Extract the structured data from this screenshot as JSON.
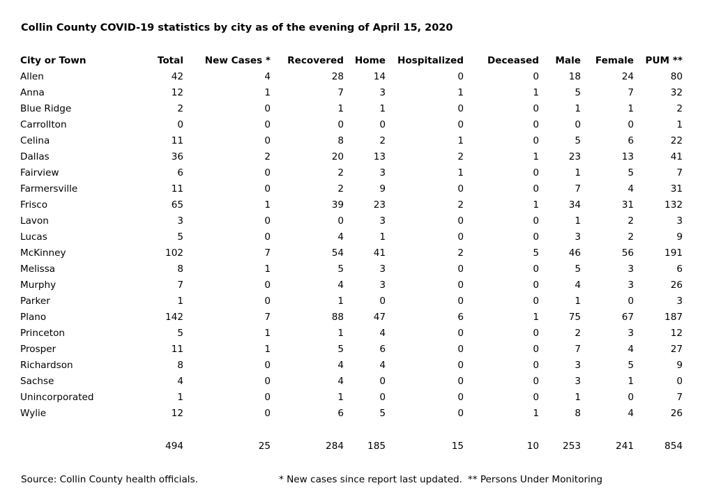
{
  "title": "Collin County COVID-19 statistics by city as of the evening of April 15, 2020",
  "columns": [
    "City or Town",
    "Total",
    "New Cases *",
    "Recovered",
    "Home",
    "Hospitalized",
    "Deceased",
    "Male",
    "Female",
    "PUM **"
  ],
  "rows": [
    [
      "Allen",
      "42",
      "4",
      "28",
      "14",
      "0",
      "0",
      "18",
      "24",
      "80"
    ],
    [
      "Anna",
      "12",
      "1",
      "7",
      "3",
      "1",
      "1",
      "5",
      "7",
      "32"
    ],
    [
      "Blue Ridge",
      "2",
      "0",
      "1",
      "1",
      "0",
      "0",
      "1",
      "1",
      "2"
    ],
    [
      "Carrollton",
      "0",
      "0",
      "0",
      "0",
      "0",
      "0",
      "0",
      "0",
      "1"
    ],
    [
      "Celina",
      "11",
      "0",
      "8",
      "2",
      "1",
      "0",
      "5",
      "6",
      "22"
    ],
    [
      "Dallas",
      "36",
      "2",
      "20",
      "13",
      "2",
      "1",
      "23",
      "13",
      "41"
    ],
    [
      "Fairview",
      "6",
      "0",
      "2",
      "3",
      "1",
      "0",
      "1",
      "5",
      "7"
    ],
    [
      "Farmersville",
      "11",
      "0",
      "2",
      "9",
      "0",
      "0",
      "7",
      "4",
      "31"
    ],
    [
      "Frisco",
      "65",
      "1",
      "39",
      "23",
      "2",
      "1",
      "34",
      "31",
      "132"
    ],
    [
      "Lavon",
      "3",
      "0",
      "0",
      "3",
      "0",
      "0",
      "1",
      "2",
      "3"
    ],
    [
      "Lucas",
      "5",
      "0",
      "4",
      "1",
      "0",
      "0",
      "3",
      "2",
      "9"
    ],
    [
      "McKinney",
      "102",
      "7",
      "54",
      "41",
      "2",
      "5",
      "46",
      "56",
      "191"
    ],
    [
      "Melissa",
      "8",
      "1",
      "5",
      "3",
      "0",
      "0",
      "5",
      "3",
      "6"
    ],
    [
      "Murphy",
      "7",
      "0",
      "4",
      "3",
      "0",
      "0",
      "4",
      "3",
      "26"
    ],
    [
      "Parker",
      "1",
      "0",
      "1",
      "0",
      "0",
      "0",
      "1",
      "0",
      "3"
    ],
    [
      "Plano",
      "142",
      "7",
      "88",
      "47",
      "6",
      "1",
      "75",
      "67",
      "187"
    ],
    [
      "Princeton",
      "5",
      "1",
      "1",
      "4",
      "0",
      "0",
      "2",
      "3",
      "12"
    ],
    [
      "Prosper",
      "11",
      "1",
      "5",
      "6",
      "0",
      "0",
      "7",
      "4",
      "27"
    ],
    [
      "Richardson",
      "8",
      "0",
      "4",
      "4",
      "0",
      "0",
      "3",
      "5",
      "9"
    ],
    [
      "Sachse",
      "4",
      "0",
      "4",
      "0",
      "0",
      "0",
      "3",
      "1",
      "0"
    ],
    [
      "Unincorporated",
      "1",
      "0",
      "1",
      "0",
      "0",
      "0",
      "1",
      "0",
      "7"
    ],
    [
      "Wylie",
      "12",
      "0",
      "6",
      "5",
      "0",
      "1",
      "8",
      "4",
      "26"
    ]
  ],
  "totals": [
    "",
    "494",
    "25",
    "284",
    "185",
    "15",
    "10",
    "253",
    "241",
    "854"
  ],
  "footer": {
    "source": "Source: Collin County health officials.",
    "note_new_cases": "* New cases since report last updated.",
    "note_pum": "** Persons Under Monitoring"
  }
}
